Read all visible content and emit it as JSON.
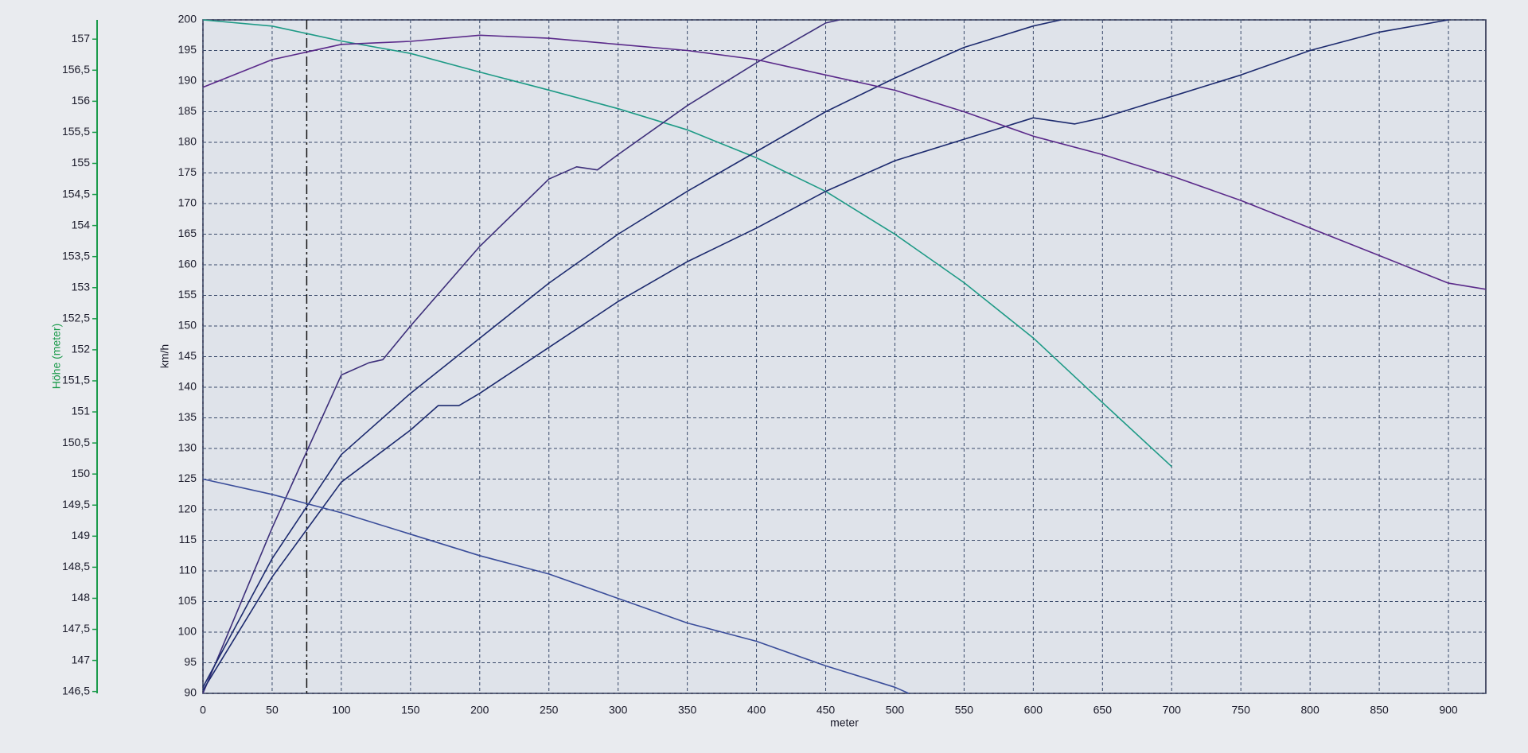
{
  "chart_data": {
    "type": "line",
    "x_label": "meter",
    "y_label": "km/h",
    "y2_label": "Höhe (meter)",
    "xlim": [
      0,
      927
    ],
    "xticks": [
      0,
      50,
      100,
      150,
      200,
      250,
      300,
      350,
      400,
      450,
      500,
      550,
      600,
      650,
      700,
      750,
      800,
      850,
      900
    ],
    "ylim": [
      90,
      200
    ],
    "yticks": [
      90,
      95,
      100,
      105,
      110,
      115,
      120,
      125,
      130,
      135,
      140,
      145,
      150,
      155,
      160,
      165,
      170,
      175,
      180,
      185,
      190,
      195,
      200
    ],
    "y2lim": [
      146.47,
      157.31
    ],
    "y2ticks": [
      {
        "value": 146.5,
        "label": "146,5"
      },
      147,
      {
        "value": 147.5,
        "label": "147,5"
      },
      148,
      {
        "value": 148.5,
        "label": "148,5"
      },
      149,
      {
        "value": 149.5,
        "label": "149,5"
      },
      150,
      {
        "value": 150.5,
        "label": "150,5"
      },
      151,
      {
        "value": 151.5,
        "label": "151,5"
      },
      152,
      {
        "value": 152.5,
        "label": "152,5"
      },
      153,
      {
        "value": 153.5,
        "label": "153,5"
      },
      154,
      {
        "value": 154.5,
        "label": "154,5"
      },
      155,
      {
        "value": 155.5,
        "label": "155,5"
      },
      156,
      {
        "value": 156.5,
        "label": "156,5"
      },
      157
    ],
    "y2_color": "#1a9a4a",
    "grid": true,
    "cursor_x": 75,
    "series": [
      {
        "color": "#1e9a86",
        "axis": "y2",
        "x": [
          0,
          50,
          100,
          150,
          200,
          250,
          300,
          350,
          400,
          450,
          500,
          550,
          600,
          650,
          700
        ],
        "values": [
          157.31,
          157.21,
          156.97,
          156.77,
          156.47,
          156.18,
          155.88,
          155.54,
          155.09,
          154.55,
          153.86,
          153.08,
          152.19,
          151.15,
          150.12
        ]
      },
      {
        "color": "#3d2f7a",
        "x": [
          0,
          50,
          100,
          120,
          130,
          150,
          200,
          250,
          270,
          285,
          300,
          350,
          400,
          450,
          460
        ],
        "values": [
          90,
          117,
          142,
          144,
          144.5,
          150,
          163,
          174,
          176,
          175.5,
          178,
          186,
          193,
          199.5,
          200
        ]
      },
      {
        "color": "#1c2a6e",
        "x": [
          0,
          50,
          100,
          150,
          200,
          250,
          300,
          350,
          400,
          450,
          500,
          550,
          600,
          620
        ],
        "values": [
          91,
          112,
          129,
          139,
          148,
          157,
          165,
          172,
          178.5,
          185,
          190.5,
          195.5,
          199,
          200
        ]
      },
      {
        "color": "#1c2a6e",
        "x": [
          0,
          50,
          100,
          150,
          170,
          185,
          200,
          250,
          300,
          350,
          400,
          450,
          500,
          550,
          600,
          630,
          650,
          700,
          750,
          800,
          850,
          900
        ],
        "values": [
          90.5,
          109,
          124.5,
          133,
          137,
          137,
          139,
          146.5,
          154,
          160.5,
          166,
          172,
          177,
          180.5,
          184,
          183,
          184,
          187.5,
          191,
          195,
          198,
          200
        ]
      },
      {
        "color": "#5a2a8a",
        "x": [
          0,
          50,
          100,
          150,
          200,
          250,
          300,
          350,
          400,
          450,
          500,
          550,
          600,
          650,
          700,
          750,
          800,
          850,
          900,
          927
        ],
        "values": [
          189,
          193.5,
          196,
          196.5,
          197.5,
          197,
          196,
          195,
          193.5,
          191,
          188.5,
          185,
          181,
          178,
          174.5,
          170.5,
          166,
          161.5,
          157,
          156
        ]
      },
      {
        "color": "#3a4d9a",
        "x": [
          0,
          50,
          100,
          150,
          200,
          250,
          300,
          350,
          400,
          450,
          500,
          510
        ],
        "values": [
          125,
          122.5,
          119.5,
          116,
          112.5,
          109.5,
          105.5,
          101.5,
          98.5,
          94.5,
          91,
          90
        ]
      }
    ]
  }
}
